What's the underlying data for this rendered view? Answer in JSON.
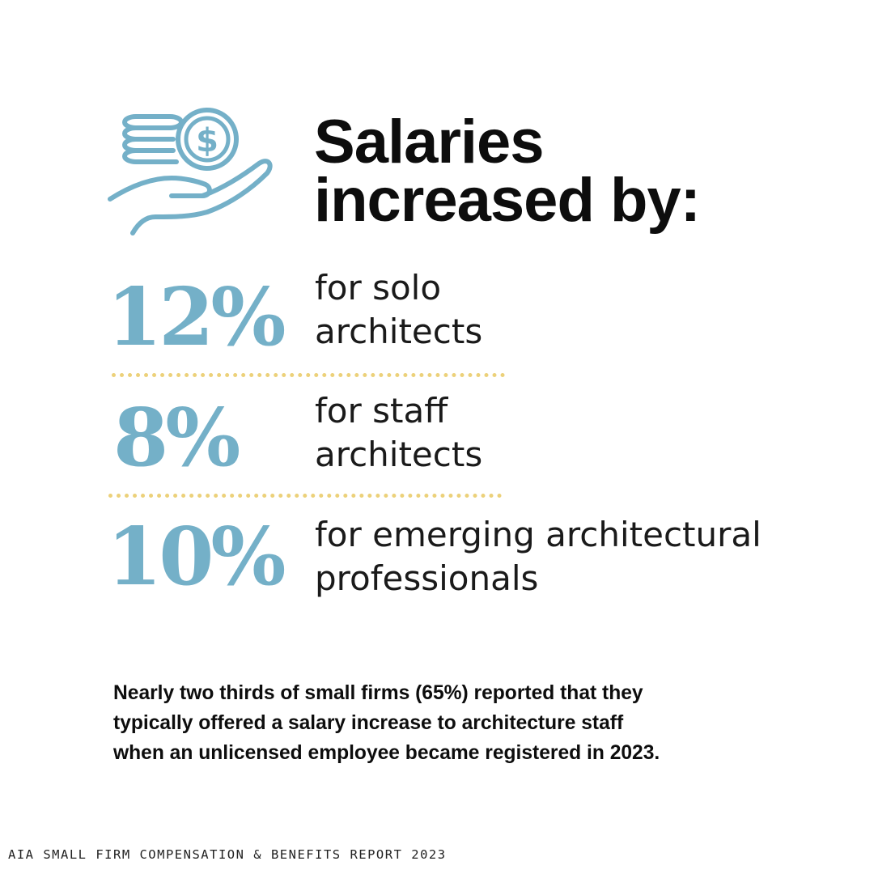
{
  "colors": {
    "accent": "#74b0c8",
    "divider": "#ecd17a",
    "text": "#0d0d0d"
  },
  "icon": "coins-in-hand-icon",
  "headline": {
    "line1": "Salaries",
    "line2": "increased by:"
  },
  "stats": [
    {
      "percent": "12%",
      "line1": "for solo",
      "line2": "architects"
    },
    {
      "percent": "8%",
      "line1": "for staff",
      "line2": "architects"
    },
    {
      "percent": "10%",
      "line1": "for emerging architectural",
      "line2": "professionals"
    }
  ],
  "note": {
    "line1": "Nearly two thirds of small firms (65%) reported that they",
    "line2": "typically offered a salary increase to architecture staff",
    "line3": "when an unlicensed employee became registered in 2023."
  },
  "source": "AIA SMALL FIRM COMPENSATION & BENEFITS REPORT 2023"
}
